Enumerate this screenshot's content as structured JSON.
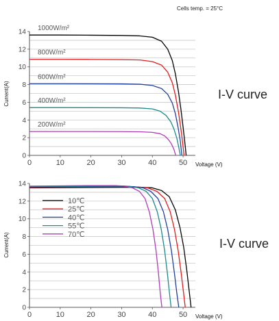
{
  "page": {
    "top_note": "Cells temp. = 25°C"
  },
  "chart_data": [
    {
      "type": "line",
      "title": "",
      "side_label": "I-V curve",
      "xlabel": "Voltage  (V)",
      "ylabel": "Current(A)",
      "xlim": [
        0,
        54
      ],
      "ylim": [
        0,
        14
      ],
      "xticks": [
        0,
        10,
        20,
        30,
        40,
        50
      ],
      "yticks": [
        0,
        2,
        4,
        6,
        8,
        10,
        12,
        14
      ],
      "grid": "horizontal",
      "series": [
        {
          "name": "1000W/m²",
          "color": "#000000",
          "x": [
            0,
            10,
            20,
            30,
            36,
            40,
            43,
            45,
            46.5,
            47.5,
            48.5,
            49.3,
            50.0,
            50.6,
            51.0
          ],
          "y": [
            13.6,
            13.6,
            13.58,
            13.55,
            13.5,
            13.35,
            12.9,
            12.0,
            10.7,
            9.2,
            7.2,
            5.2,
            3.2,
            1.4,
            0
          ]
        },
        {
          "name": "800W/m²",
          "color": "#e31a1c",
          "x": [
            0,
            10,
            20,
            30,
            36,
            40,
            43,
            45,
            46.5,
            47.5,
            48.5,
            49.2,
            49.8,
            50.3
          ],
          "y": [
            10.85,
            10.85,
            10.84,
            10.82,
            10.78,
            10.6,
            10.2,
            9.4,
            8.2,
            6.8,
            4.9,
            3.2,
            1.6,
            0
          ]
        },
        {
          "name": "600W/m²",
          "color": "#1f3fa0",
          "x": [
            0,
            10,
            20,
            30,
            36,
            40,
            43,
            45,
            46.5,
            47.5,
            48.4,
            49.1,
            49.6
          ],
          "y": [
            8.1,
            8.1,
            8.09,
            8.08,
            8.04,
            7.9,
            7.55,
            6.9,
            5.9,
            4.7,
            3.1,
            1.6,
            0
          ]
        },
        {
          "name": "400W/m²",
          "color": "#1a8a8a",
          "x": [
            0,
            10,
            20,
            30,
            36,
            40,
            42.5,
            44.5,
            46,
            47,
            48,
            48.6,
            49.1
          ],
          "y": [
            5.4,
            5.4,
            5.39,
            5.38,
            5.35,
            5.25,
            5.0,
            4.5,
            3.8,
            3.0,
            1.9,
            0.9,
            0
          ]
        },
        {
          "name": "200W/m²",
          "color": "#b03ab8",
          "x": [
            0,
            10,
            20,
            30,
            36,
            40,
            42.5,
            44,
            45.2,
            46.2,
            47,
            47.6
          ],
          "y": [
            2.7,
            2.7,
            2.7,
            2.69,
            2.67,
            2.6,
            2.45,
            2.2,
            1.8,
            1.3,
            0.7,
            0
          ]
        }
      ]
    },
    {
      "type": "line",
      "title": "",
      "side_label": "I-V curve",
      "xlabel": "Voltage  (V)",
      "ylabel": "Current(A)",
      "xlim": [
        0,
        54
      ],
      "ylim": [
        0,
        14
      ],
      "xticks": [
        0,
        10,
        20,
        30,
        40,
        50
      ],
      "yticks": [
        0,
        2,
        4,
        6,
        8,
        10,
        12,
        14
      ],
      "grid": "horizontal",
      "legend_position": "upper-left",
      "series": [
        {
          "name": "10℃",
          "color": "#000000",
          "x": [
            0,
            10,
            20,
            30,
            36,
            40,
            43,
            45.5,
            47.5,
            49,
            50.2,
            51.2,
            52,
            52.6
          ],
          "y": [
            13.5,
            13.52,
            13.54,
            13.56,
            13.57,
            13.5,
            13.2,
            12.5,
            11.0,
            9.0,
            6.8,
            4.2,
            1.8,
            0
          ]
        },
        {
          "name": "25℃",
          "color": "#e31a1c",
          "x": [
            0,
            10,
            20,
            30,
            35,
            38.5,
            41.5,
            44,
            45.8,
            47.2,
            48.4,
            49.4,
            50.2,
            50.7
          ],
          "y": [
            13.55,
            13.57,
            13.6,
            13.62,
            13.6,
            13.5,
            13.1,
            12.3,
            10.8,
            8.8,
            6.4,
            3.8,
            1.5,
            0
          ]
        },
        {
          "name": "40℃",
          "color": "#1f3fa0",
          "x": [
            0,
            10,
            20,
            30,
            34,
            37,
            39.5,
            41.8,
            43.6,
            45,
            46.2,
            47.2,
            48,
            48.6
          ],
          "y": [
            13.6,
            13.63,
            13.66,
            13.68,
            13.64,
            13.5,
            13.1,
            12.3,
            10.8,
            8.8,
            6.4,
            3.8,
            1.5,
            0
          ]
        },
        {
          "name": "55℃",
          "color": "#1a8a8a",
          "x": [
            0,
            10,
            20,
            30,
            32.5,
            35.5,
            38,
            40,
            41.6,
            42.9,
            44,
            44.9,
            45.6,
            46.1
          ],
          "y": [
            13.65,
            13.68,
            13.71,
            13.72,
            13.68,
            13.5,
            13.1,
            12.3,
            10.8,
            8.8,
            6.4,
            3.8,
            1.5,
            0
          ]
        },
        {
          "name": "70℃",
          "color": "#b03ab8",
          "x": [
            0,
            10,
            20,
            28,
            31,
            33.5,
            35.8,
            37.6,
            39,
            40.2,
            41.2,
            42,
            42.6,
            43.1
          ],
          "y": [
            13.7,
            13.73,
            13.76,
            13.76,
            13.7,
            13.5,
            13.1,
            12.3,
            10.8,
            8.8,
            6.4,
            3.8,
            1.5,
            0
          ]
        }
      ]
    }
  ]
}
